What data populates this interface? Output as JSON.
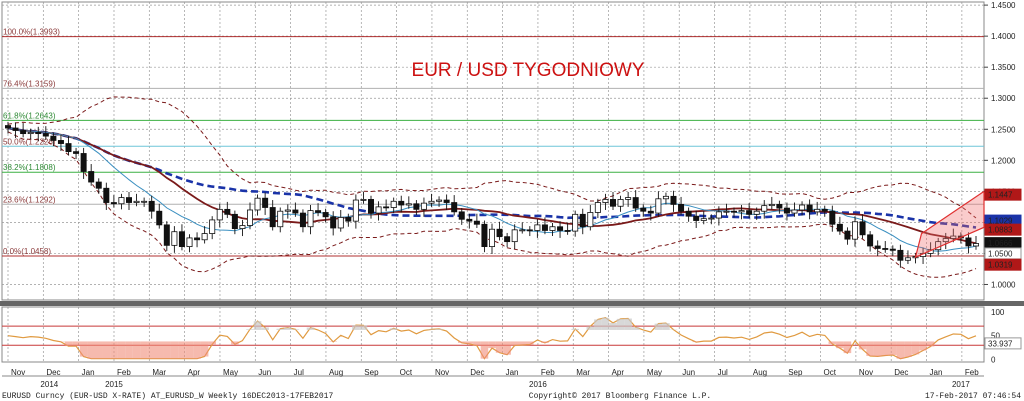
{
  "chart_data": {
    "type": "candlestick",
    "title": "EUR / USD TYGODNIOWY",
    "ylim": [
      0.975,
      1.455
    ],
    "yticks": [
      1.45,
      1.4,
      1.35,
      1.3,
      1.25,
      1.2,
      1.15,
      1.1,
      1.05,
      1.0
    ],
    "ytick_labels": [
      "1.4500",
      "1.4000",
      "1.3500",
      "1.3000",
      "1.2500",
      "1.2000",
      "1.1500",
      "1.1000",
      "1.0500",
      "1.0000"
    ],
    "x_months": [
      "Nov",
      "Dec",
      "Jan",
      "Feb",
      "Mar",
      "Apr",
      "May",
      "Jun",
      "Jul",
      "Aug",
      "Sep",
      "Oct",
      "Nov",
      "Dec",
      "Jan",
      "Feb",
      "Mar",
      "Apr",
      "May",
      "Jun",
      "Jul",
      "Aug",
      "Sep",
      "Oct",
      "Nov",
      "Dec",
      "Jan",
      "Feb"
    ],
    "x_years": [
      "2014",
      "2015",
      "2016",
      "2017"
    ],
    "fib_levels": [
      {
        "label": "100.0%(1.3993)",
        "value": 1.3993,
        "color": "#b03030"
      },
      {
        "label": "76.4%(1.3159)",
        "value": 1.3159,
        "color": "#b0b0b0"
      },
      {
        "label": "61.8%(1.2643)",
        "value": 1.2643,
        "color": "#3cb043"
      },
      {
        "label": "50.0%(1.2226)",
        "value": 1.2226,
        "color": "#6ec6d8"
      },
      {
        "label": "38.2%(1.1808)",
        "value": 1.1808,
        "color": "#3cb043"
      },
      {
        "label": "23.6%(1.1292)",
        "value": 1.1292,
        "color": "#b0b0b0"
      },
      {
        "label": "0.0%(1.0458)",
        "value": 1.0458,
        "color": "#b03030"
      }
    ],
    "price_tags": [
      {
        "text": "1.1447",
        "value": 1.1447,
        "bg": "#b01818",
        "fg": "#ffffff"
      },
      {
        "text": "1.1029",
        "value": 1.1029,
        "bg": "#1a33a8",
        "fg": "#ffffff"
      },
      {
        "text": "1.0883",
        "value": 1.0883,
        "bg": "#b01818",
        "fg": "#ffffff"
      },
      {
        "text": "1.0666",
        "value": 1.0666,
        "bg": "#111111",
        "fg": "#ffffff"
      },
      {
        "text": "1.0500",
        "value": 1.05,
        "bg": "#ffffff",
        "fg": "#333333"
      },
      {
        "text": "1.0319",
        "value": 1.0319,
        "bg": "#b01818",
        "fg": "#ffffff"
      }
    ],
    "closes": [
      1.252,
      1.248,
      1.243,
      1.245,
      1.243,
      1.239,
      1.232,
      1.227,
      1.214,
      1.211,
      1.182,
      1.165,
      1.155,
      1.132,
      1.13,
      1.14,
      1.132,
      1.134,
      1.134,
      1.118,
      1.096,
      1.063,
      1.085,
      1.061,
      1.075,
      1.072,
      1.082,
      1.104,
      1.121,
      1.113,
      1.09,
      1.095,
      1.12,
      1.139,
      1.124,
      1.093,
      1.118,
      1.12,
      1.115,
      1.093,
      1.119,
      1.116,
      1.109,
      1.091,
      1.108,
      1.102,
      1.136,
      1.137,
      1.115,
      1.125,
      1.124,
      1.134,
      1.128,
      1.13,
      1.121,
      1.131,
      1.134,
      1.136,
      1.132,
      1.117,
      1.105,
      1.102,
      1.097,
      1.061,
      1.089,
      1.077,
      1.069,
      1.088,
      1.088,
      1.087,
      1.096,
      1.087,
      1.093,
      1.087,
      1.086,
      1.113,
      1.093,
      1.116,
      1.132,
      1.137,
      1.126,
      1.137,
      1.14,
      1.123,
      1.118,
      1.115,
      1.138,
      1.142,
      1.129,
      1.118,
      1.11,
      1.103,
      1.106,
      1.107,
      1.117,
      1.118,
      1.117,
      1.119,
      1.113,
      1.118,
      1.127,
      1.129,
      1.123,
      1.115,
      1.12,
      1.128,
      1.117,
      1.121,
      1.118,
      1.097,
      1.086,
      1.073,
      1.101,
      1.08,
      1.062,
      1.058,
      1.057,
      1.055,
      1.039,
      1.043,
      1.045,
      1.05,
      1.056,
      1.069,
      1.074,
      1.078,
      1.075,
      1.062,
      1.066
    ],
    "indicator": {
      "ylim": [
        -5,
        110
      ],
      "yticks": [
        100,
        50,
        0
      ],
      "ytick_labels": [
        "100",
        "50",
        "0"
      ],
      "levels": [
        70,
        30
      ],
      "last_value_label": "33.937",
      "last_value": 33.937
    }
  },
  "footer": {
    "left": "EURUSD Curncy (EUR-USD X-RATE) AT_EURUSD_W  Weekly 16DEC2013-17FEB2017",
    "center": "Copyright© 2017 Bloomberg Finance L.P.",
    "right": "17-Feb-2017 07:46:54"
  }
}
